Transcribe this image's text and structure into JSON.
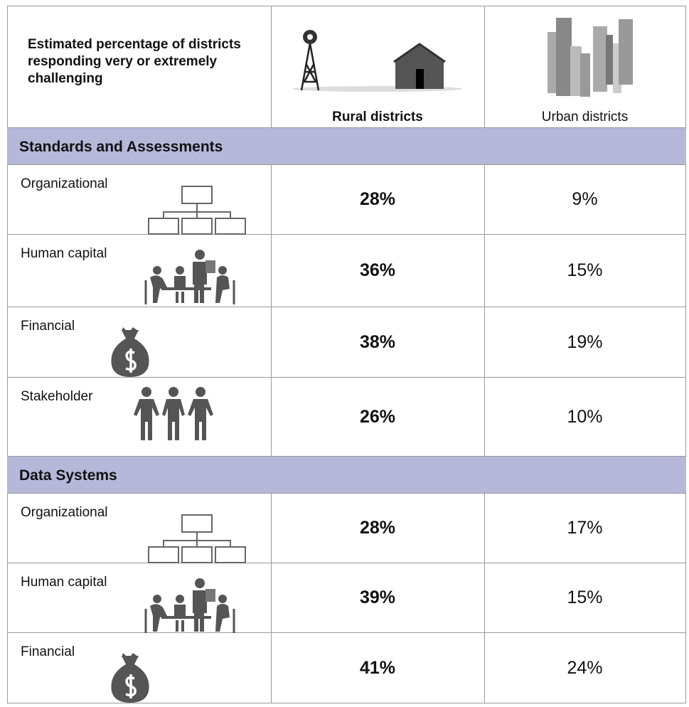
{
  "header": {
    "title": "Estimated percentage of districts responding very or extremely challenging",
    "columns": [
      "Rural districts",
      "Urban districts"
    ]
  },
  "sections": [
    {
      "title": "Standards and Assessments",
      "rows": [
        {
          "label": "Organizational",
          "rural": "28%",
          "urban": "9%"
        },
        {
          "label": "Human capital",
          "rural": "36%",
          "urban": "15%"
        },
        {
          "label": "Financial",
          "rural": "38%",
          "urban": "19%"
        },
        {
          "label": "Stakeholder",
          "rural": "26%",
          "urban": "10%"
        }
      ]
    },
    {
      "title": "Data Systems",
      "rows": [
        {
          "label": "Organizational",
          "rural": "28%",
          "urban": "17%"
        },
        {
          "label": "Human capital",
          "rural": "39%",
          "urban": "15%"
        },
        {
          "label": "Financial",
          "rural": "41%",
          "urban": "24%"
        }
      ]
    }
  ]
}
